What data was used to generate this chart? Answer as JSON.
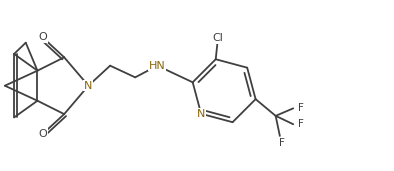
{
  "bg_color": "#ffffff",
  "bond_color": "#404040",
  "n_color": "#8B6508",
  "o_color": "#404040",
  "cl_color": "#404040",
  "f_color": "#404040",
  "line_width": 1.3,
  "font_size": 7.5,
  "figsize": [
    3.94,
    1.71
  ],
  "dpi": 100,
  "xlim": [
    0,
    9.4
  ],
  "ylim": [
    0,
    4.05
  ]
}
